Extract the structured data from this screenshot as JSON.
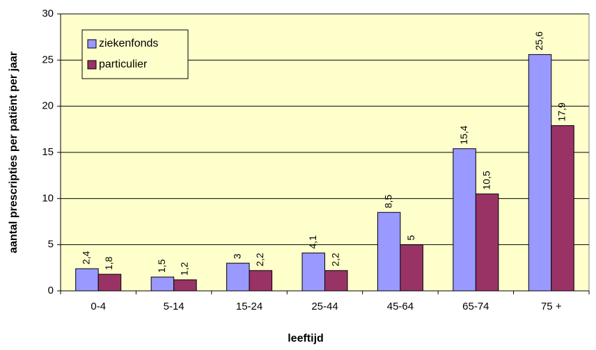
{
  "chart_data": {
    "type": "bar",
    "x_label": "leeftijd",
    "y_label": "aantal prescripties per patiënt per jaar",
    "categories": [
      "0-4",
      "5-14",
      "15-24",
      "25-44",
      "45-64",
      "65-74",
      "75 +"
    ],
    "series": [
      {
        "name": "ziekenfonds",
        "color": "#9999ff",
        "values": [
          2.4,
          1.5,
          3,
          4.1,
          8.5,
          15.4,
          25.6
        ],
        "value_labels": [
          "2,4",
          "1,5",
          "3",
          "4,1",
          "8,5",
          "15,4",
          "25,6"
        ]
      },
      {
        "name": "particulier",
        "color": "#993366",
        "values": [
          1.8,
          1.2,
          2.2,
          2.2,
          5,
          10.5,
          17.9
        ],
        "value_labels": [
          "1,8",
          "1,2",
          "2,2",
          "2,2",
          "5",
          "10,5",
          "17,9"
        ]
      }
    ],
    "ylim": [
      0,
      30
    ],
    "yticks": [
      0,
      5,
      10,
      15,
      20,
      25,
      30
    ],
    "grid": true,
    "legend": "top-left"
  }
}
